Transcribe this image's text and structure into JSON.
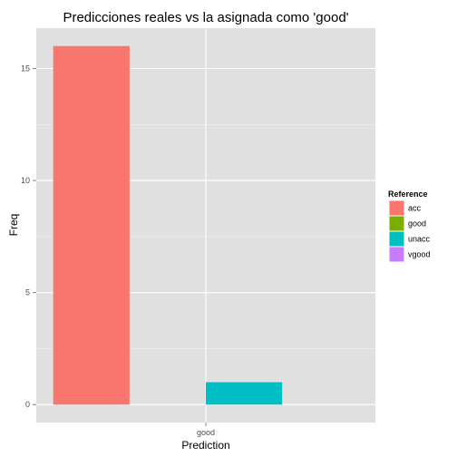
{
  "chart_data": {
    "type": "bar",
    "title": "Predicciones reales vs la asignada como 'good'",
    "xlabel": "Prediction",
    "ylabel": "Freq",
    "categories": [
      "good"
    ],
    "ylim": [
      -0.8,
      16.8
    ],
    "yticks": [
      0,
      5,
      10,
      15
    ],
    "grid": true,
    "legend": {
      "title": "Reference",
      "position": "right",
      "entries": [
        {
          "name": "acc",
          "color": "#F8766D"
        },
        {
          "name": "good",
          "color": "#7CAE00"
        },
        {
          "name": "unacc",
          "color": "#00BFC4"
        },
        {
          "name": "vgood",
          "color": "#C77CFF"
        }
      ]
    },
    "series": [
      {
        "name": "acc",
        "color": "#F8766D",
        "values": [
          16
        ]
      },
      {
        "name": "good",
        "color": "#7CAE00",
        "values": [
          0
        ]
      },
      {
        "name": "unacc",
        "color": "#00BFC4",
        "values": [
          1
        ]
      },
      {
        "name": "vgood",
        "color": "#C77CFF",
        "values": [
          0
        ]
      }
    ],
    "panel_background": "#E0E0E0",
    "grid_color": "#FFFFFF"
  }
}
